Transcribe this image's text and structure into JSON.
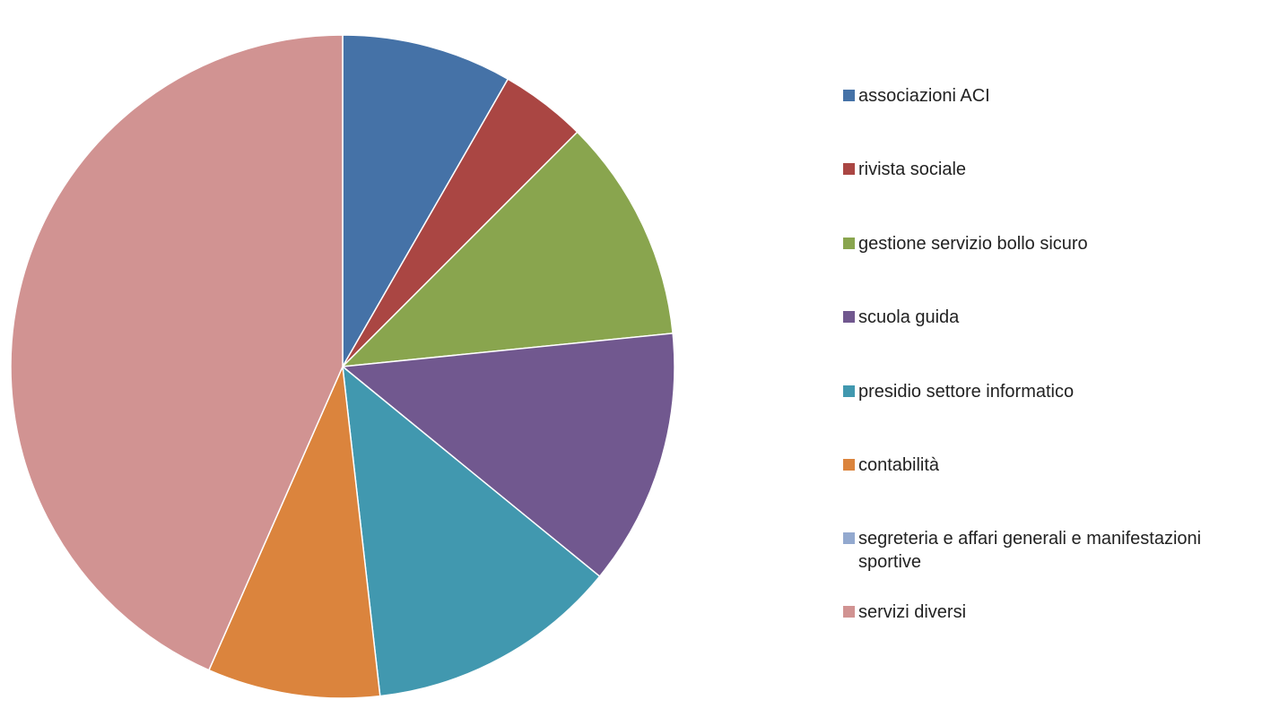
{
  "chart_data": {
    "type": "pie",
    "title": "",
    "legend_position": "right",
    "start_angle_deg": 0,
    "direction": "clockwise",
    "slices": [
      {
        "label": "associazioni ACI",
        "value": 8.3,
        "color": "#4572A7"
      },
      {
        "label": "rivista sociale",
        "value": 4.2,
        "color": "#AA4643"
      },
      {
        "label": "gestione servizio bollo sicuro",
        "value": 10.9,
        "color": "#89A54E"
      },
      {
        "label": "scuola guida",
        "value": 12.5,
        "color": "#71588F"
      },
      {
        "label": "presidio settore informatico",
        "value": 12.3,
        "color": "#4198AF"
      },
      {
        "label": "contabilità",
        "value": 8.4,
        "color": "#DB843D"
      },
      {
        "label": "segreteria e affari generali e manifestazioni sportive",
        "value": 0,
        "color": "#93A9CF"
      },
      {
        "label": "servizi diversi",
        "value": 43.4,
        "color": "#D19392"
      }
    ]
  }
}
